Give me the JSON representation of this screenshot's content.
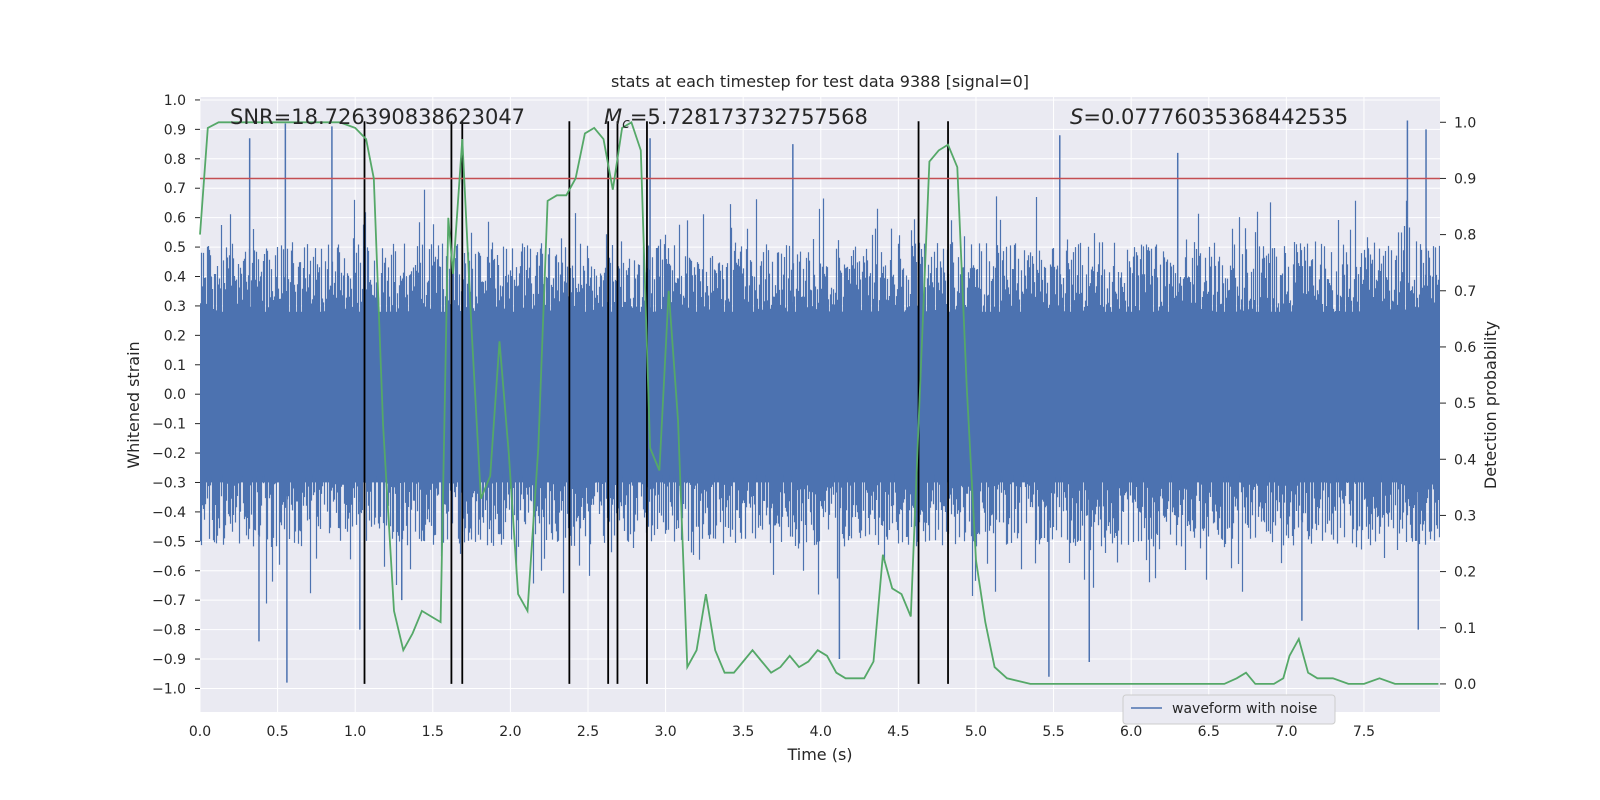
{
  "chart_data": {
    "type": "line",
    "title": "stats at each timestep for test data 9388 [signal=0]",
    "xlabel": "Time (s)",
    "ylabel": "Whitened strain",
    "y2label": "Detection probability",
    "xlim": [
      0.0,
      7.99
    ],
    "ylim": [
      -1.08,
      1.01
    ],
    "y2lim": [
      -0.05,
      1.045
    ],
    "xticks": [
      "0.0",
      "0.5",
      "1.0",
      "1.5",
      "2.0",
      "2.5",
      "3.0",
      "3.5",
      "4.0",
      "4.5",
      "5.0",
      "5.5",
      "6.0",
      "6.5",
      "7.0",
      "7.5"
    ],
    "yticks": [
      "1.0",
      "0.9",
      "0.8",
      "0.7",
      "0.6",
      "0.5",
      "0.4",
      "0.3",
      "0.2",
      "0.1",
      "0.0",
      "−0.1",
      "−0.2",
      "−0.3",
      "−0.4",
      "−0.5",
      "−0.6",
      "−0.7",
      "−0.8",
      "−0.9",
      "−1.0"
    ],
    "y2ticks": [
      "1.0",
      "0.9",
      "0.8",
      "0.7",
      "0.6",
      "0.5",
      "0.4",
      "0.3",
      "0.2",
      "0.1",
      "0.0"
    ],
    "annotations": {
      "snr": "SNR=18.726390838623047",
      "mc_symbol": "M",
      "mc_sub": "c",
      "mc_value": "=5.728173732757568",
      "s_symbol": "S",
      "s_value": "=0.07776035368442535"
    },
    "legend": {
      "label": "waveform with noise",
      "position": "lower-right"
    },
    "threshold": 0.9,
    "vlines": [
      1.06,
      1.62,
      1.69,
      2.38,
      2.63,
      2.69,
      2.88,
      4.63,
      4.82
    ],
    "waveform_envelope": {
      "typical_min": -0.45,
      "typical_max": 0.45,
      "peak_min": -0.98,
      "peak_max": 0.93
    },
    "series": [
      {
        "name": "waveform with noise",
        "color": "#4c72b0",
        "spikes": [
          {
            "x": 0.32,
            "y": 0.87
          },
          {
            "x": 0.55,
            "y": 0.92
          },
          {
            "x": 0.56,
            "y": -0.98
          },
          {
            "x": 0.38,
            "y": -0.84
          },
          {
            "x": 0.85,
            "y": 0.91
          },
          {
            "x": 1.03,
            "y": -0.8
          },
          {
            "x": 2.9,
            "y": 0.87
          },
          {
            "x": 3.82,
            "y": 0.85
          },
          {
            "x": 4.12,
            "y": -0.9
          },
          {
            "x": 5.54,
            "y": 0.88
          },
          {
            "x": 5.47,
            "y": -0.96
          },
          {
            "x": 5.73,
            "y": -0.91
          },
          {
            "x": 7.78,
            "y": 0.93
          },
          {
            "x": 7.9,
            "y": 0.9
          },
          {
            "x": 7.85,
            "y": -0.8
          },
          {
            "x": 7.1,
            "y": -0.77
          },
          {
            "x": 6.3,
            "y": 0.82
          },
          {
            "x": 1.3,
            "y": -0.7
          }
        ]
      },
      {
        "name": "detection probability",
        "color": "#55a868",
        "x": [
          0.0,
          0.05,
          0.12,
          0.2,
          0.3,
          0.45,
          0.6,
          0.8,
          0.9,
          1.0,
          1.07,
          1.12,
          1.18,
          1.25,
          1.31,
          1.37,
          1.43,
          1.49,
          1.55,
          1.6,
          1.63,
          1.69,
          1.75,
          1.81,
          1.87,
          1.93,
          1.99,
          2.05,
          2.11,
          2.18,
          2.24,
          2.3,
          2.36,
          2.42,
          2.48,
          2.54,
          2.6,
          2.66,
          2.72,
          2.78,
          2.84,
          2.9,
          2.96,
          3.02,
          3.08,
          3.14,
          3.2,
          3.26,
          3.32,
          3.38,
          3.44,
          3.5,
          3.56,
          3.62,
          3.68,
          3.74,
          3.8,
          3.86,
          3.92,
          3.98,
          4.04,
          4.1,
          4.16,
          4.22,
          4.28,
          4.34,
          4.4,
          4.46,
          4.52,
          4.58,
          4.63,
          4.7,
          4.76,
          4.82,
          4.88,
          4.94,
          5.0,
          5.06,
          5.12,
          5.2,
          5.35,
          5.5,
          5.7,
          5.9,
          6.1,
          6.3,
          6.5,
          6.6,
          6.68,
          6.74,
          6.8,
          6.86,
          6.92,
          6.98,
          7.02,
          7.08,
          7.14,
          7.2,
          7.3,
          7.4,
          7.5,
          7.6,
          7.7,
          7.8,
          7.9,
          7.98
        ],
        "y": [
          0.8,
          0.99,
          1.0,
          1.0,
          1.0,
          1.0,
          1.0,
          1.0,
          1.0,
          0.99,
          0.97,
          0.9,
          0.46,
          0.13,
          0.06,
          0.09,
          0.13,
          0.12,
          0.11,
          0.83,
          0.73,
          0.97,
          0.63,
          0.33,
          0.37,
          0.61,
          0.41,
          0.16,
          0.13,
          0.42,
          0.86,
          0.87,
          0.87,
          0.9,
          0.98,
          0.99,
          0.97,
          0.88,
          0.99,
          1.0,
          0.95,
          0.42,
          0.38,
          0.7,
          0.47,
          0.03,
          0.06,
          0.16,
          0.06,
          0.02,
          0.02,
          0.04,
          0.06,
          0.04,
          0.02,
          0.03,
          0.05,
          0.03,
          0.04,
          0.06,
          0.05,
          0.02,
          0.01,
          0.01,
          0.01,
          0.04,
          0.23,
          0.17,
          0.16,
          0.12,
          0.46,
          0.93,
          0.95,
          0.96,
          0.92,
          0.53,
          0.22,
          0.11,
          0.03,
          0.01,
          0.0,
          0.0,
          0.0,
          0.0,
          0.0,
          0.0,
          0.0,
          0.0,
          0.01,
          0.02,
          0.0,
          0.0,
          0.0,
          0.01,
          0.05,
          0.08,
          0.02,
          0.01,
          0.01,
          0.0,
          0.0,
          0.01,
          0.0,
          0.0,
          0.0,
          0.0
        ]
      },
      {
        "name": "threshold",
        "color": "#c44e52",
        "y": 0.9
      },
      {
        "name": "event markers",
        "color": "#000000"
      }
    ]
  }
}
